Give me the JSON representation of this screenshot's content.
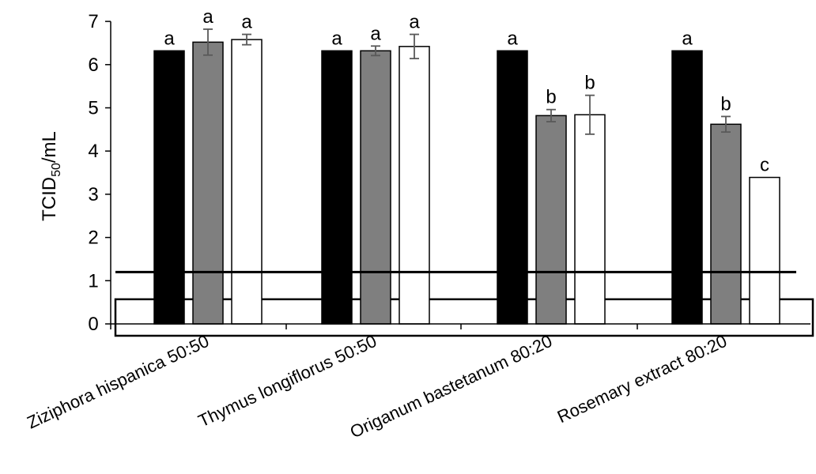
{
  "chart_data": {
    "type": "bar",
    "ylabel": {
      "main": "TCID",
      "sub": "50",
      "unit": "/mL"
    },
    "ylim": [
      0,
      7
    ],
    "yticks": [
      0,
      1,
      2,
      3,
      4,
      5,
      6,
      7
    ],
    "grid": false,
    "legend": "none",
    "categories": [
      "Ziziphora hispanica 50:50",
      "Thymus longiflorus 50:50",
      "Origanum bastetanum 80:20",
      "Rosemary extract 80:20"
    ],
    "series": [
      {
        "color": "#000000",
        "values": [
          6.32,
          6.32,
          6.32,
          6.32
        ],
        "errors": [
          0,
          0,
          0,
          0
        ],
        "letters": [
          "a",
          "a",
          "a",
          "a"
        ]
      },
      {
        "color": "#7f7f7f",
        "values": [
          6.52,
          6.32,
          4.82,
          4.62
        ],
        "errors": [
          0.3,
          0.11,
          0.14,
          0.18
        ],
        "letters": [
          "a",
          "a",
          "b",
          "b"
        ]
      },
      {
        "color": "#ffffff",
        "values": [
          6.58,
          6.42,
          4.84,
          3.39
        ],
        "errors": [
          0.12,
          0.28,
          0.45,
          0
        ],
        "letters": [
          "a",
          "a",
          "b",
          "c"
        ]
      }
    ],
    "reference_lines": [
      1.2
    ],
    "reference_band": [
      0,
      0.57
    ]
  }
}
